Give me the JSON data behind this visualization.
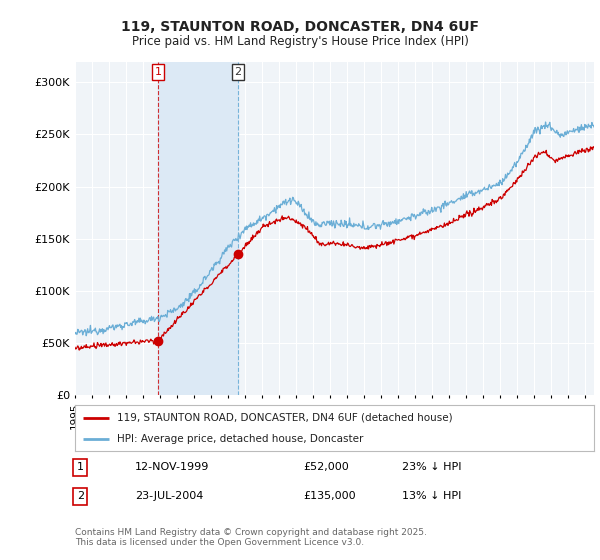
{
  "title": "119, STAUNTON ROAD, DONCASTER, DN4 6UF",
  "subtitle": "Price paid vs. HM Land Registry's House Price Index (HPI)",
  "red_label": "119, STAUNTON ROAD, DONCASTER, DN4 6UF (detached house)",
  "blue_label": "HPI: Average price, detached house, Doncaster",
  "transaction1_date": "12-NOV-1999",
  "transaction1_price": "£52,000",
  "transaction1_hpi": "23% ↓ HPI",
  "transaction2_date": "23-JUL-2004",
  "transaction2_price": "£135,000",
  "transaction2_hpi": "13% ↓ HPI",
  "footer": "Contains HM Land Registry data © Crown copyright and database right 2025.\nThis data is licensed under the Open Government Licence v3.0.",
  "ylim": [
    0,
    320000
  ],
  "yticks": [
    0,
    50000,
    100000,
    150000,
    200000,
    250000,
    300000
  ],
  "background_color": "#ffffff",
  "plot_bg_color": "#f0f4f8",
  "grid_color": "#ffffff",
  "red_color": "#cc0000",
  "blue_color": "#6baed6",
  "shade_color": "#dce9f5",
  "marker1_x": 1999.87,
  "marker1_y": 52000,
  "marker2_x": 2004.58,
  "marker2_y": 135000,
  "xmin": 1995,
  "xmax": 2025.5
}
